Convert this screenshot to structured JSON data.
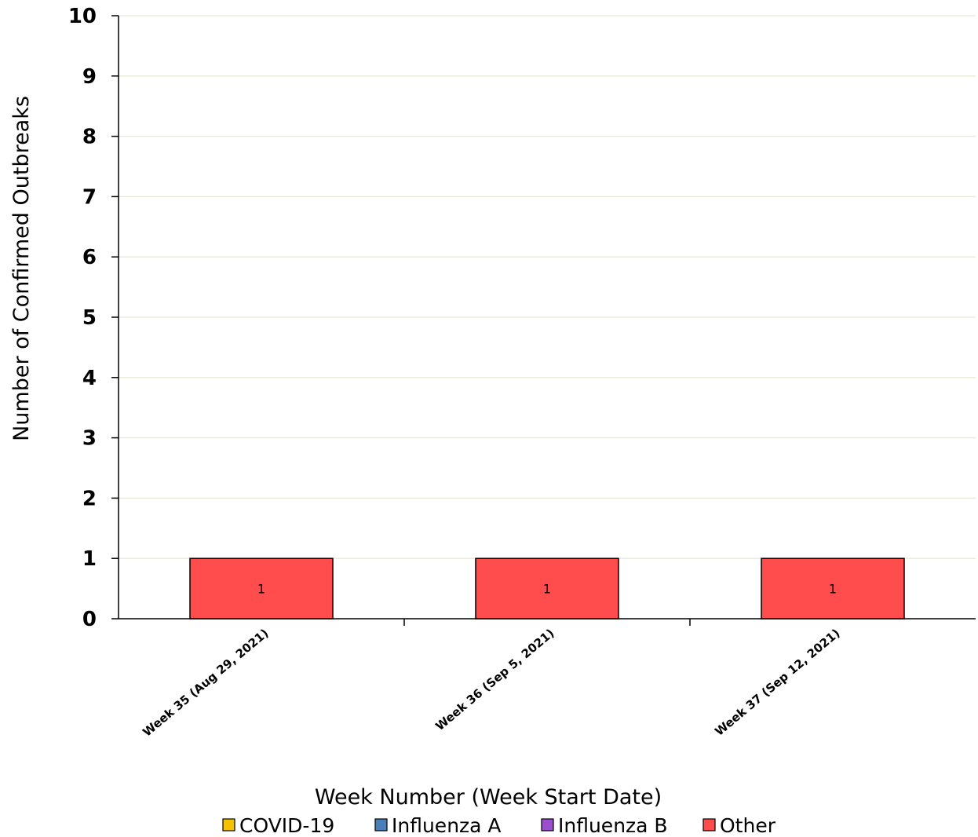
{
  "chart_data": {
    "type": "bar",
    "stacked": true,
    "categories": [
      "Week 35 (Aug 29, 2021)",
      "Week 36 (Sep 5, 2021)",
      "Week 37 (Sep 12, 2021)"
    ],
    "series": [
      {
        "name": "COVID-19",
        "color": "#f5c200",
        "values": [
          0,
          0,
          0
        ]
      },
      {
        "name": "Influenza A",
        "color": "#4a7ebb",
        "values": [
          0,
          0,
          0
        ]
      },
      {
        "name": "Influenza B",
        "color": "#9b4fd0",
        "values": [
          0,
          0,
          0
        ]
      },
      {
        "name": "Other",
        "color": "#ff4d4d",
        "values": [
          1,
          1,
          1
        ]
      }
    ],
    "data_labels": [
      "1",
      "1",
      "1"
    ],
    "title": "",
    "xlabel": "Week Number (Week Start Date)",
    "ylabel": "Number of Confirmed Outbreaks",
    "ylim": [
      0,
      10
    ],
    "yticks": [
      "0",
      "1",
      "2",
      "3",
      "4",
      "5",
      "6",
      "7",
      "8",
      "9",
      "10"
    ],
    "grid": true,
    "legend_position": "bottom"
  }
}
